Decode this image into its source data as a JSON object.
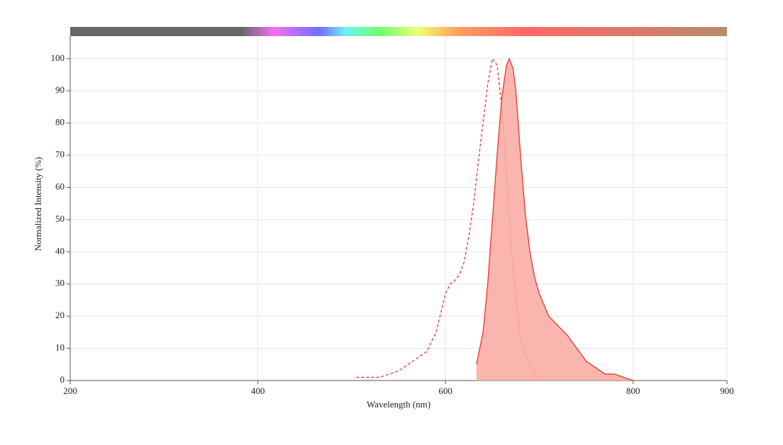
{
  "chart_data": {
    "type": "line",
    "xlabel": "Wavelength (nm)",
    "ylabel": "Normalized Intensity (%)",
    "xlim": [
      200,
      900
    ],
    "xticks": [
      200,
      400,
      600,
      800,
      900
    ],
    "ylim": [
      0,
      107
    ],
    "yticks": [
      0,
      10,
      20,
      30,
      40,
      50,
      60,
      70,
      80,
      90,
      100
    ],
    "grid": true,
    "series": [
      {
        "color": "#e8362e",
        "dashed": true,
        "filled": false,
        "x": [
          505,
          530,
          540,
          550,
          560,
          570,
          580,
          590,
          600,
          605,
          610,
          615,
          620,
          625,
          630,
          635,
          640,
          645,
          650,
          655,
          660,
          665,
          670,
          675,
          680,
          685,
          690,
          695,
          700
        ],
        "values": [
          1,
          1,
          2,
          3,
          5,
          7,
          9,
          15,
          27,
          30,
          31,
          33,
          37,
          45,
          55,
          68,
          80,
          92,
          100,
          98,
          85,
          65,
          42,
          25,
          13,
          8,
          5,
          2,
          1
        ]
      },
      {
        "color": "#e8362e",
        "dashed": false,
        "filled": true,
        "fill": "#f8a8a0",
        "x": [
          633,
          640,
          645,
          650,
          655,
          660,
          665,
          668,
          672,
          675,
          680,
          685,
          690,
          695,
          700,
          710,
          720,
          730,
          740,
          750,
          760,
          770,
          780,
          790,
          800
        ],
        "values": [
          5,
          15,
          30,
          50,
          70,
          88,
          98,
          100,
          97,
          90,
          70,
          52,
          40,
          32,
          27,
          20,
          17,
          14,
          10,
          6,
          4,
          2,
          2,
          1,
          0
        ]
      }
    ]
  }
}
